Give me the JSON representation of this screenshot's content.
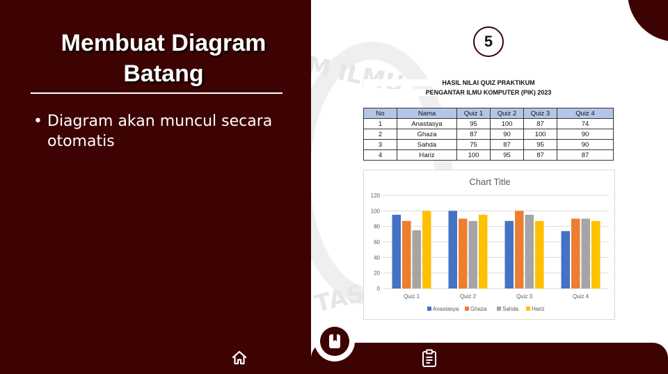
{
  "slide": {
    "title_line1": "Membuat Diagram",
    "title_line2": "Batang",
    "bullet_mark": "•",
    "bullet_text": "Diagram akan muncul secara otomatis",
    "slide_number": "5",
    "watermark_text_1": "M ILMU",
    "watermark_text_2": "TAS"
  },
  "sheet": {
    "title_line1": "HASIL NILAI QUIZ PRAKTIKUM",
    "title_line2": "PENGANTAR ILMU KOMPUTER (PIK) 2023",
    "headers": [
      "No",
      "Nama",
      "Quiz 1",
      "Quiz 2",
      "Quiz 3",
      "Quiz 4"
    ],
    "rows": [
      [
        "1",
        "Anastasya",
        "95",
        "100",
        "87",
        "74"
      ],
      [
        "2",
        "Ghaza",
        "87",
        "90",
        "100",
        "90"
      ],
      [
        "3",
        "Sahda",
        "75",
        "87",
        "95",
        "90"
      ],
      [
        "4",
        "Hariz",
        "100",
        "95",
        "87",
        "87"
      ]
    ]
  },
  "chart_data": {
    "type": "bar",
    "title": "Chart Title",
    "categories": [
      "Quiz 1",
      "Quiz 2",
      "Quiz 3",
      "Quiz 4"
    ],
    "series": [
      {
        "name": "Anastasya",
        "values": [
          95,
          100,
          87,
          74
        ],
        "color": "#4472c4"
      },
      {
        "name": "Ghaza",
        "values": [
          87,
          90,
          100,
          90
        ],
        "color": "#ed7d31"
      },
      {
        "name": "Sahda",
        "values": [
          75,
          87,
          95,
          90
        ],
        "color": "#a5a5a5"
      },
      {
        "name": "Hariz",
        "values": [
          100,
          95,
          87,
          87
        ],
        "color": "#ffc000"
      }
    ],
    "yticks": [
      0,
      20,
      40,
      60,
      80,
      100,
      120
    ],
    "ylim": [
      0,
      120
    ],
    "grid": true,
    "legend_position": "bottom"
  },
  "nav": {
    "home_icon": "home-icon",
    "bookmark_icon": "bookmark-icon",
    "clipboard_icon": "clipboard-icon"
  },
  "colors": {
    "maroon": "#3d0202",
    "table_header": "#b4c6e7"
  }
}
